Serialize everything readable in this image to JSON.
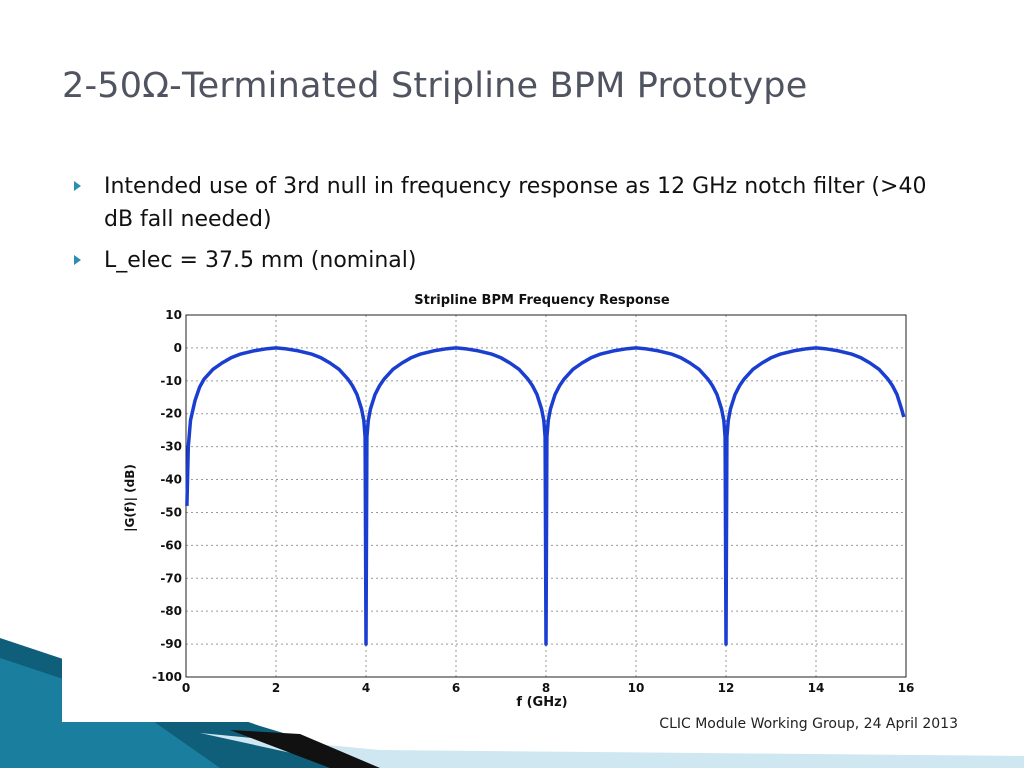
{
  "slide": {
    "title": "2-50Ω-Terminated Stripline BPM Prototype",
    "bullets": [
      "Intended use of 3rd null in frequency response as 12 GHz notch filter (>40 dB fall needed)",
      "L_elec = 37.5 mm (nominal)"
    ],
    "footer": "CLIC Module Working Group, 24 April 2013",
    "colors": {
      "accent": "#2a8fb3",
      "band_dark": "#0f5f7a",
      "band_light": "#7fc4dc",
      "curve": "#1a3fd0"
    }
  },
  "chart_data": {
    "type": "line",
    "title": "Stripline BPM Frequency Response",
    "xlabel": "f (GHz)",
    "ylabel": "|G(f)| (dB)",
    "xlim": [
      0,
      16
    ],
    "ylim": [
      -100,
      10
    ],
    "x_ticks": [
      "0",
      "2",
      "4",
      "6",
      "8",
      "10",
      "12",
      "14",
      "16"
    ],
    "y_ticks": [
      "10",
      "0",
      "-10",
      "-20",
      "-30",
      "-40",
      "-50",
      "-60",
      "-70",
      "-80",
      "-90",
      "-100"
    ],
    "grid": true,
    "series": [
      {
        "x": [
          0.02,
          0.05,
          0.1,
          0.2,
          0.3,
          0.4,
          0.6,
          0.8,
          1.0,
          1.2,
          1.5,
          1.8,
          2.0,
          2.2,
          2.5,
          2.8,
          3.0,
          3.2,
          3.4,
          3.6,
          3.7,
          3.8,
          3.9,
          3.95,
          3.98,
          4.0,
          4.02,
          4.05,
          4.1,
          4.2,
          4.3,
          4.4,
          4.6,
          4.8,
          5.0,
          5.2,
          5.5,
          5.8,
          6.0,
          6.2,
          6.5,
          6.8,
          7.0,
          7.2,
          7.4,
          7.6,
          7.7,
          7.8,
          7.9,
          7.95,
          7.98,
          8.0,
          8.02,
          8.05,
          8.1,
          8.2,
          8.3,
          8.4,
          8.6,
          8.8,
          9.0,
          9.2,
          9.5,
          9.8,
          10.0,
          10.2,
          10.5,
          10.8,
          11.0,
          11.2,
          11.4,
          11.6,
          11.7,
          11.8,
          11.9,
          11.95,
          11.98,
          12.0,
          12.02,
          12.05,
          12.1,
          12.2,
          12.3,
          12.4,
          12.6,
          12.8,
          13.0,
          13.2,
          13.5,
          13.8,
          14.0,
          14.2,
          14.5,
          14.8,
          15.0,
          15.2,
          15.4,
          15.6,
          15.7,
          15.8,
          15.9,
          15.95
        ],
        "y": [
          -48,
          -30,
          -22,
          -16,
          -12,
          -9.5,
          -6.5,
          -4.6,
          -3.0,
          -1.9,
          -0.9,
          -0.25,
          0,
          -0.25,
          -0.9,
          -1.9,
          -3.0,
          -4.6,
          -6.5,
          -9.5,
          -11.5,
          -14.2,
          -18.5,
          -22,
          -27,
          -90,
          -27,
          -22,
          -18.5,
          -14.2,
          -11.5,
          -9.5,
          -6.5,
          -4.6,
          -3.0,
          -1.9,
          -0.9,
          -0.25,
          0,
          -0.25,
          -0.9,
          -1.9,
          -3.0,
          -4.6,
          -6.5,
          -9.5,
          -11.5,
          -14.2,
          -18.5,
          -22,
          -27,
          -90,
          -27,
          -22,
          -18.5,
          -14.2,
          -11.5,
          -9.5,
          -6.5,
          -4.6,
          -3.0,
          -1.9,
          -0.9,
          -0.25,
          0,
          -0.25,
          -0.9,
          -1.9,
          -3.0,
          -4.6,
          -6.5,
          -9.5,
          -11.5,
          -14.2,
          -18.5,
          -22,
          -27,
          -90,
          -27,
          -22,
          -18.5,
          -14.2,
          -11.5,
          -9.5,
          -6.5,
          -4.6,
          -3.0,
          -1.9,
          -0.9,
          -0.25,
          0,
          -0.25,
          -0.9,
          -1.9,
          -3.0,
          -4.6,
          -6.5,
          -9.5,
          -11.5,
          -14.2,
          -18.5,
          -21
        ]
      }
    ]
  }
}
